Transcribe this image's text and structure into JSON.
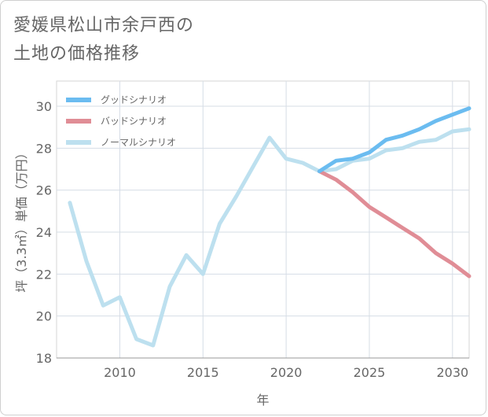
{
  "title_line1": "愛媛県松山市余戸西の",
  "title_line2": "土地の価格推移",
  "chart_data": {
    "type": "line",
    "xlabel": "年",
    "ylabel": "坪（3.3㎡）単価（万円）",
    "xlim": [
      2006.2,
      2031
    ],
    "ylim": [
      18,
      31.2
    ],
    "xticks": [
      2010,
      2015,
      2020,
      2025,
      2030
    ],
    "yticks": [
      18,
      20,
      22,
      24,
      26,
      28,
      30
    ],
    "grid": true,
    "legend_position": "top-left",
    "series": [
      {
        "name": "グッドシナリオ",
        "color": "#6bbcf0",
        "x": [
          2022,
          2023,
          2024,
          2025,
          2026,
          2027,
          2028,
          2029,
          2030,
          2031
        ],
        "values": [
          26.9,
          27.4,
          27.5,
          27.8,
          28.4,
          28.6,
          28.9,
          29.3,
          29.6,
          29.9
        ]
      },
      {
        "name": "バッドシナリオ",
        "color": "#e08d96",
        "x": [
          2022,
          2023,
          2024,
          2025,
          2026,
          2027,
          2028,
          2029,
          2030,
          2031
        ],
        "values": [
          26.9,
          26.5,
          25.9,
          25.2,
          24.7,
          24.2,
          23.7,
          23.0,
          22.5,
          21.9
        ]
      },
      {
        "name": "ノーマルシナリオ",
        "color": "#bde0ef",
        "x": [
          2007,
          2008,
          2009,
          2010,
          2011,
          2012,
          2013,
          2014,
          2015,
          2016,
          2017,
          2018,
          2019,
          2020,
          2021,
          2022,
          2023,
          2024,
          2025,
          2026,
          2027,
          2028,
          2029,
          2030,
          2031
        ],
        "values": [
          25.4,
          22.6,
          20.5,
          20.9,
          18.9,
          18.6,
          21.4,
          22.9,
          22.0,
          24.4,
          25.7,
          27.1,
          28.5,
          27.5,
          27.3,
          26.9,
          27.0,
          27.4,
          27.5,
          27.9,
          28.0,
          28.3,
          28.4,
          28.8,
          28.9
        ]
      }
    ]
  }
}
